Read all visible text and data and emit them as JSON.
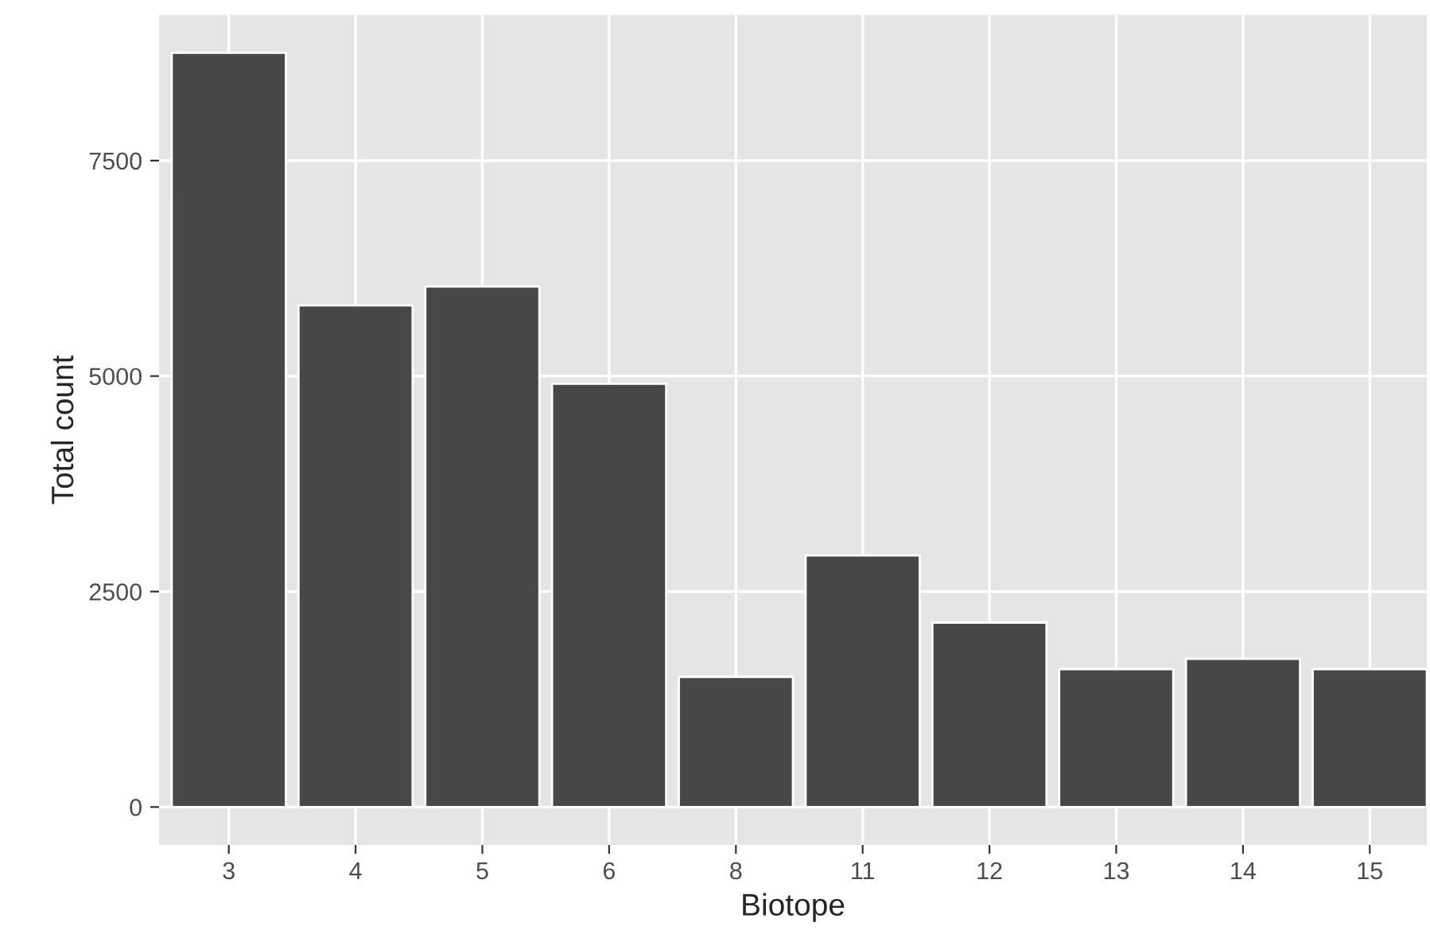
{
  "chart_data": {
    "type": "bar",
    "xlabel": "Biotope",
    "ylabel": "Total count",
    "categories": [
      "3",
      "4",
      "5",
      "6",
      "8",
      "11",
      "12",
      "13",
      "14",
      "15"
    ],
    "values": [
      8750,
      5820,
      6040,
      4910,
      1510,
      2920,
      2140,
      1600,
      1720,
      1600
    ],
    "color": "#474747",
    "ylim": [
      -440,
      9190
    ],
    "yticks": [
      0,
      2500,
      5000,
      7500
    ],
    "grid": true
  }
}
